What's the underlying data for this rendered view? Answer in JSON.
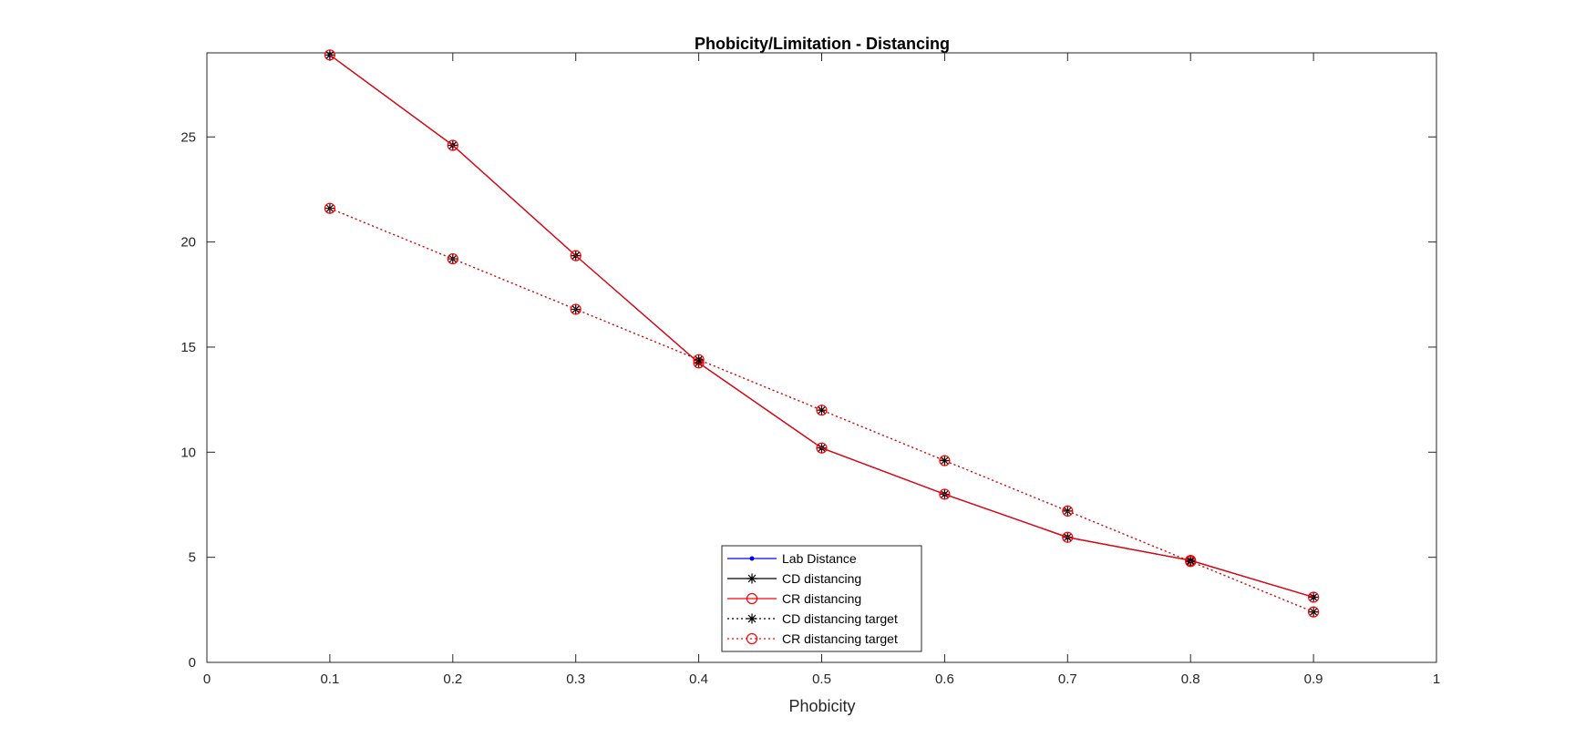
{
  "chart_data": {
    "type": "line",
    "title": "Phobicity/Limitation - Distancing",
    "xlabel": "Phobicity",
    "ylabel": "",
    "xlim": [
      0,
      1
    ],
    "ylim": [
      0,
      29
    ],
    "xticks": [
      0,
      0.1,
      0.2,
      0.3,
      0.4,
      0.5,
      0.6,
      0.7,
      0.8,
      0.9,
      1
    ],
    "xtick_labels": [
      "0",
      "0.1",
      "0.2",
      "0.3",
      "0.4",
      "0.5",
      "0.6",
      "0.7",
      "0.8",
      "0.9",
      "1"
    ],
    "yticks": [
      0,
      5,
      10,
      15,
      20,
      25
    ],
    "ytick_labels": [
      "0",
      "5",
      "10",
      "15",
      "20",
      "25"
    ],
    "grid": false,
    "legend_position": "bottom-center",
    "x": [
      0.1,
      0.2,
      0.3,
      0.4,
      0.5,
      0.6,
      0.7,
      0.8,
      0.9
    ],
    "series": [
      {
        "name": "Lab Distance",
        "color": "#0000ff",
        "line": "solid",
        "marker": "dot",
        "values": [
          28.9,
          24.6,
          19.35,
          14.25,
          10.2,
          8.0,
          5.95,
          4.85,
          3.1
        ]
      },
      {
        "name": "CD distancing",
        "color": "#000000",
        "line": "solid",
        "marker": "star",
        "values": [
          28.9,
          24.6,
          19.35,
          14.25,
          10.2,
          8.0,
          5.95,
          4.85,
          3.1
        ]
      },
      {
        "name": "CR distancing",
        "color": "#ff0000",
        "line": "solid",
        "marker": "circle",
        "values": [
          28.9,
          24.6,
          19.35,
          14.25,
          10.2,
          8.0,
          5.95,
          4.85,
          3.1
        ]
      },
      {
        "name": "CD distancing target",
        "color": "#000000",
        "line": "dotted",
        "marker": "star",
        "values": [
          21.6,
          19.2,
          16.8,
          14.4,
          12.0,
          9.6,
          7.2,
          4.8,
          2.4
        ]
      },
      {
        "name": "CR distancing target",
        "color": "#ff0000",
        "line": "dotted",
        "marker": "circle",
        "values": [
          21.6,
          19.2,
          16.8,
          14.4,
          12.0,
          9.6,
          7.2,
          4.8,
          2.4
        ]
      }
    ]
  }
}
